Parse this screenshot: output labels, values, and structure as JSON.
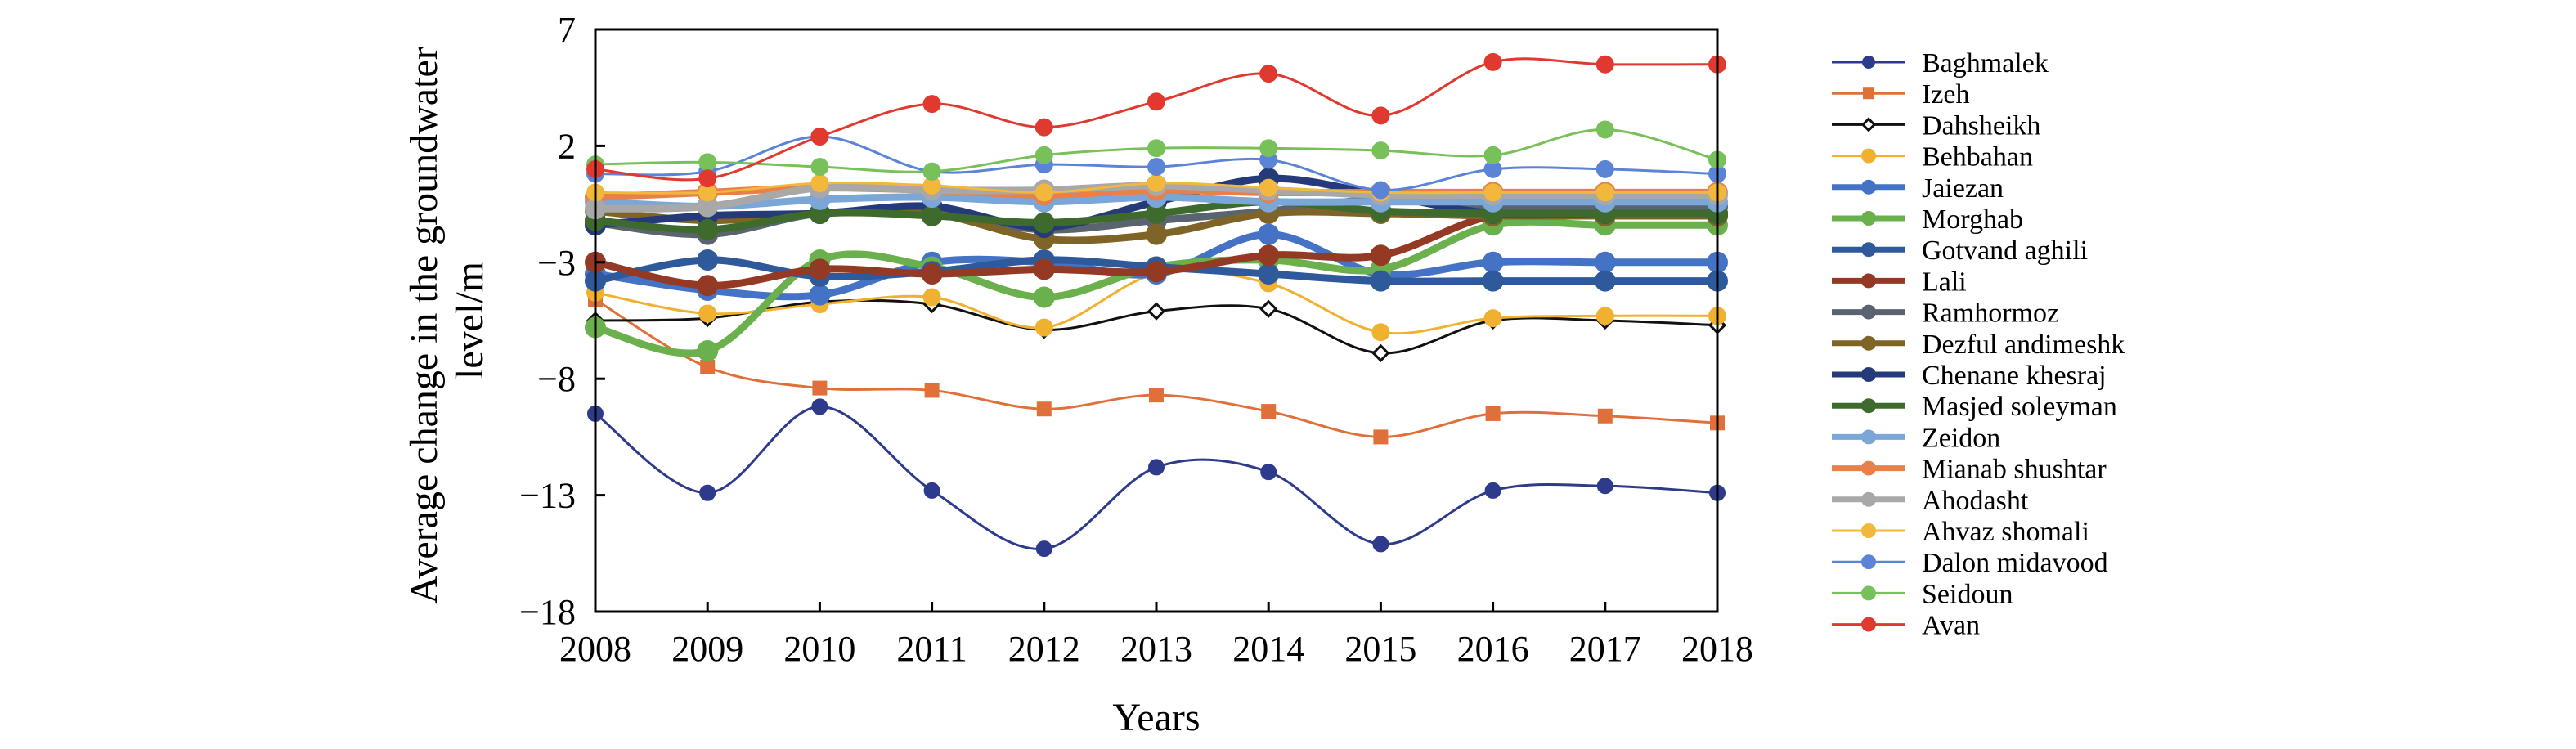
{
  "chart_data": {
    "type": "line",
    "xlabel": "Years",
    "ylabel_lines": [
      "Average change in the groundwater",
      "level/m"
    ],
    "x": [
      "2008",
      "2009",
      "2010",
      "2011",
      "2012",
      "2013",
      "2014",
      "2015",
      "2016",
      "2017",
      "2018"
    ],
    "yticks": [
      "7",
      "2",
      "−3",
      "−8",
      "−13",
      "−18"
    ],
    "ylim": [
      -18,
      7
    ],
    "grid": false,
    "legend_position": "right",
    "series": [
      {
        "name": "Baghmalek",
        "color": "#2e3a8c",
        "marker": "circle-open",
        "width": 3,
        "values": [
          -9.5,
          -12.9,
          -9.2,
          -12.8,
          -15.3,
          -11.8,
          -12.0,
          -15.1,
          -12.8,
          -12.6,
          -12.9
        ]
      },
      {
        "name": "Izeh",
        "color": "#e0703a",
        "marker": "square",
        "width": 3,
        "values": [
          -4.6,
          -7.5,
          -8.4,
          -8.5,
          -9.3,
          -8.7,
          -9.4,
          -10.5,
          -9.5,
          -9.6,
          -9.9
        ]
      },
      {
        "name": "Dahsheikh",
        "color": "#111111",
        "marker": "diamond-open",
        "width": 3,
        "values": [
          -5.5,
          -5.4,
          -4.7,
          -4.8,
          -5.9,
          -5.1,
          -5.0,
          -6.9,
          -5.5,
          -5.5,
          -5.7
        ]
      },
      {
        "name": "Behbahan",
        "color": "#f0b030",
        "marker": "circle",
        "width": 3,
        "values": [
          -4.3,
          -5.2,
          -4.8,
          -4.5,
          -5.8,
          -3.5,
          -3.9,
          -6.0,
          -5.4,
          -5.3,
          -5.3
        ]
      },
      {
        "name": "Jaiezan",
        "color": "#4472c4",
        "marker": "circle",
        "width": 9,
        "values": [
          -3.5,
          -4.2,
          -4.4,
          -3.0,
          -3.0,
          -3.5,
          -1.8,
          -3.5,
          -3.0,
          -3.0,
          -3.0
        ]
      },
      {
        "name": "Morghab",
        "color": "#6ab04c",
        "marker": "circle",
        "width": 9,
        "values": [
          -5.8,
          -6.8,
          -2.9,
          -3.2,
          -4.5,
          -3.2,
          -2.9,
          -3.3,
          -1.4,
          -1.4,
          -1.4
        ]
      },
      {
        "name": "Gotvand aghili",
        "color": "#2e5a9c",
        "marker": "circle",
        "width": 9,
        "values": [
          -3.8,
          -2.9,
          -3.6,
          -3.4,
          -2.9,
          -3.2,
          -3.5,
          -3.8,
          -3.8,
          -3.8,
          -3.8
        ]
      },
      {
        "name": "Lali",
        "color": "#943a24",
        "marker": "circle",
        "width": 9,
        "values": [
          -3.0,
          -4.0,
          -3.3,
          -3.5,
          -3.3,
          -3.4,
          -2.7,
          -2.7,
          -1.0,
          -1.0,
          -1.0
        ]
      },
      {
        "name": "Ramhormoz",
        "color": "#5a6470",
        "marker": "circle",
        "width": 9,
        "values": [
          -1.3,
          -1.8,
          -0.9,
          -0.9,
          -1.6,
          -1.2,
          -0.8,
          -0.3,
          -0.6,
          -0.6,
          -0.6
        ]
      },
      {
        "name": "Dezful andimeshk",
        "color": "#7f6428",
        "marker": "circle",
        "width": 9,
        "values": [
          -0.8,
          -1.2,
          -0.9,
          -0.9,
          -2.0,
          -1.8,
          -0.9,
          -0.9,
          -1.0,
          -1.0,
          -1.0
        ]
      },
      {
        "name": "Chenane khesraj",
        "color": "#253a78",
        "marker": "circle",
        "width": 9,
        "values": [
          -1.4,
          -1.0,
          -0.9,
          -0.6,
          -1.5,
          -0.4,
          0.6,
          -0.1,
          -0.9,
          -0.9,
          -0.9
        ]
      },
      {
        "name": "Masjed soleyman",
        "color": "#3e6a2e",
        "marker": "circle",
        "width": 9,
        "values": [
          -1.2,
          -1.6,
          -0.9,
          -1.0,
          -1.3,
          -0.9,
          -0.4,
          -0.8,
          -0.9,
          -0.9,
          -0.9
        ]
      },
      {
        "name": "Zeidon",
        "color": "#7aa6d8",
        "marker": "circle",
        "width": 9,
        "values": [
          -0.4,
          -0.6,
          -0.3,
          -0.2,
          -0.4,
          -0.2,
          -0.4,
          -0.4,
          -0.4,
          -0.4,
          -0.4
        ]
      },
      {
        "name": "Mianab shushtar",
        "color": "#e8804a",
        "marker": "circle",
        "width": 9,
        "values": [
          -0.2,
          0.0,
          0.2,
          0.1,
          -0.1,
          0.1,
          0.0,
          0.0,
          0.0,
          0.0,
          0.0
        ]
      },
      {
        "name": "Ahodasht",
        "color": "#a8a8a8",
        "marker": "circle",
        "width": 9,
        "values": [
          -0.7,
          -0.6,
          0.2,
          0.1,
          0.1,
          0.3,
          0.1,
          -0.1,
          -0.1,
          -0.1,
          -0.1
        ]
      },
      {
        "name": "Ahvaz shomali",
        "color": "#f2b83c",
        "marker": "circle",
        "width": 3,
        "values": [
          0.0,
          0.0,
          0.4,
          0.3,
          0.0,
          0.4,
          0.2,
          0.0,
          0.0,
          0.0,
          0.0
        ]
      },
      {
        "name": "Dalon midavood",
        "color": "#5b84d6",
        "marker": "circle",
        "width": 3,
        "values": [
          0.8,
          0.9,
          2.4,
          0.9,
          1.2,
          1.1,
          1.4,
          0.1,
          1.0,
          1.0,
          0.8
        ]
      },
      {
        "name": "Seidoun",
        "color": "#78c05a",
        "marker": "circle",
        "width": 3,
        "values": [
          1.2,
          1.3,
          1.1,
          0.9,
          1.6,
          1.9,
          1.9,
          1.8,
          1.6,
          2.7,
          1.4
        ]
      },
      {
        "name": "Avan",
        "color": "#e03a30",
        "marker": "circle",
        "width": 3,
        "values": [
          1.0,
          0.6,
          2.4,
          3.8,
          2.8,
          3.9,
          5.1,
          3.3,
          5.6,
          5.5,
          5.5
        ]
      }
    ]
  }
}
